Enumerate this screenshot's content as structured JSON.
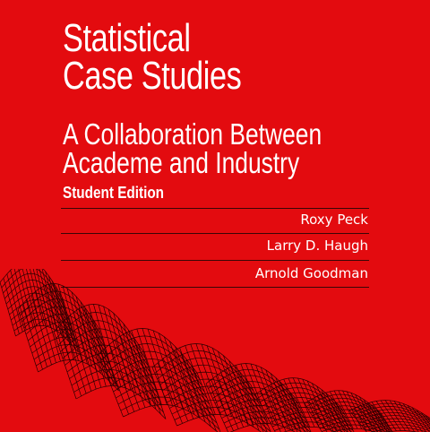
{
  "cover": {
    "title_lines": [
      "Statistical",
      "Case Studies"
    ],
    "subtitle_lines": [
      "A Collaboration Between",
      "Academe and Industry"
    ],
    "edition": "Student Edition",
    "authors": [
      "Roxy Peck",
      "Larry D. Haugh",
      "Arnold Goodman"
    ]
  },
  "colors": {
    "background": "#e30b0f",
    "text": "#ffffff",
    "rule": "#3a0606",
    "mesh": "#2a0000"
  },
  "icons": [
    "wireframe-surface-graphic"
  ]
}
